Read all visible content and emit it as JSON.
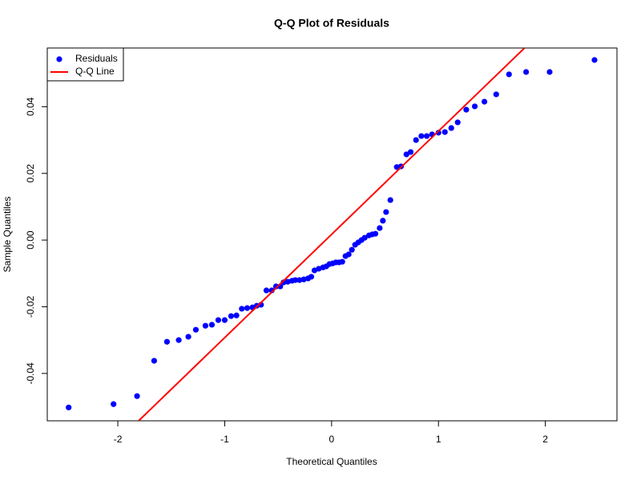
{
  "chart_data": {
    "type": "scatter",
    "title": "Q-Q Plot of Residuals",
    "x_label": "Theoretical Quantiles",
    "y_label": "Sample Quantiles",
    "xlim": [
      -2.66,
      2.67
    ],
    "ylim": [
      -0.0542,
      0.0576
    ],
    "xticks": [
      -2,
      -1,
      0,
      1,
      2
    ],
    "yticks": [
      -0.04,
      -0.02,
      {
        "value": 0,
        "label": "0.00"
      },
      0.02,
      0.04
    ],
    "grid": false,
    "legend": "top-left",
    "series": [
      {
        "name": "Residuals",
        "type": "scatter",
        "color": "#0000ff",
        "x": [
          -2.46,
          -2.04,
          -1.82,
          -1.66,
          -1.54,
          -1.43,
          -1.34,
          -1.27,
          -1.18,
          -1.12,
          -1.06,
          -1.0,
          -0.94,
          -0.89,
          -0.84,
          -0.79,
          -0.74,
          -0.7,
          -0.66,
          -0.61,
          -0.56,
          -0.52,
          -0.48,
          -0.45,
          -0.41,
          -0.37,
          -0.34,
          -0.3,
          -0.26,
          -0.22,
          -0.19,
          -0.16,
          -0.12,
          -0.08,
          -0.05,
          -0.02,
          0.01,
          0.04,
          0.07,
          0.1,
          0.13,
          0.16,
          0.19,
          0.22,
          0.25,
          0.28,
          0.31,
          0.35,
          0.38,
          0.41,
          0.45,
          0.48,
          0.51,
          0.55,
          0.61,
          0.65,
          0.7,
          0.74,
          0.79,
          0.84,
          0.89,
          0.94,
          1.0,
          1.06,
          1.12,
          1.18,
          1.26,
          1.34,
          1.43,
          1.54,
          1.66,
          1.82,
          2.04,
          2.46
        ],
        "values": [
          -0.0502,
          -0.0492,
          -0.0468,
          -0.0362,
          -0.0305,
          -0.03,
          -0.029,
          -0.0269,
          -0.0257,
          -0.0254,
          -0.024,
          -0.024,
          -0.0228,
          -0.0226,
          -0.0206,
          -0.0204,
          -0.0202,
          -0.0197,
          -0.0194,
          -0.0151,
          -0.0151,
          -0.0139,
          -0.0139,
          -0.0127,
          -0.0125,
          -0.0122,
          -0.012,
          -0.012,
          -0.0118,
          -0.0115,
          -0.011,
          -0.0091,
          -0.0086,
          -0.0082,
          -0.0079,
          -0.0072,
          -0.007,
          -0.0067,
          -0.0067,
          -0.0065,
          -0.0048,
          -0.0043,
          -0.0029,
          -0.0014,
          -0.0007,
          0.0,
          0.0007,
          0.0014,
          0.0017,
          0.0019,
          0.0036,
          0.0058,
          0.0084,
          0.012,
          0.0219,
          0.0221,
          0.0257,
          0.0264,
          0.03,
          0.0312,
          0.0312,
          0.0317,
          0.0322,
          0.0324,
          0.0336,
          0.0353,
          0.0391,
          0.0401,
          0.0415,
          0.0437,
          0.0497,
          0.0504,
          0.0504,
          0.054
        ]
      },
      {
        "name": "Q-Q Line",
        "type": "line",
        "color": "#ff0000",
        "x": [
          -1.805,
          1.805
        ],
        "values": [
          -0.0542,
          0.0576
        ]
      }
    ]
  }
}
